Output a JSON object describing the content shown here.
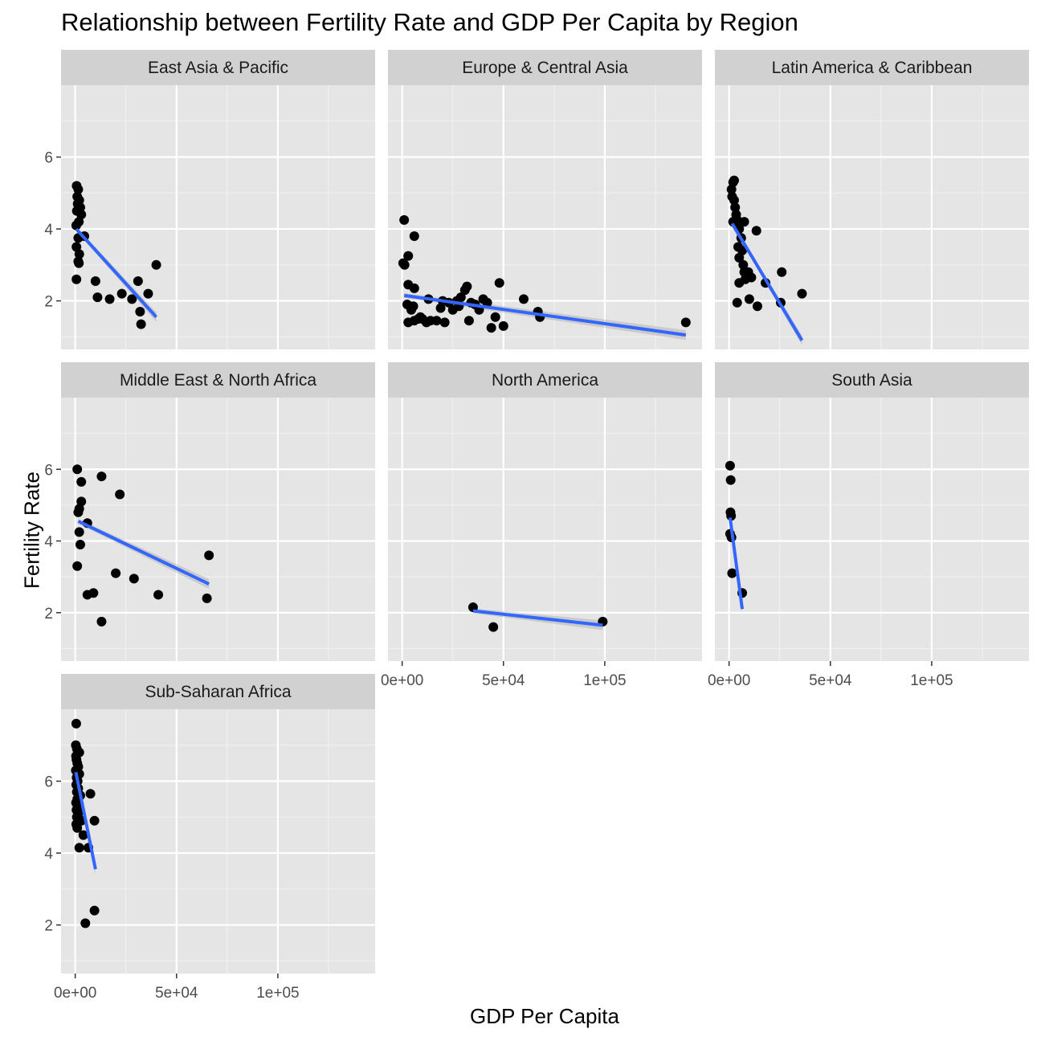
{
  "chart_data": {
    "type": "scatter",
    "title": "Relationship between Fertility Rate and GDP Per Capita by Region",
    "xlabel": "GDP Per Capita",
    "ylabel": "Fertility Rate",
    "xlim": [
      -7000,
      148000
    ],
    "ylim": [
      0.65,
      8.0
    ],
    "x_ticks": [
      0,
      50000,
      100000
    ],
    "x_tick_labels": [
      "0e+00",
      "5e+04",
      "1e+05"
    ],
    "y_ticks": [
      2,
      4,
      6
    ],
    "y_tick_labels": [
      "2",
      "4",
      "6"
    ],
    "trend": "linear fit (lm) with confidence band",
    "point_color": "#000000",
    "line_color": "#3366ff",
    "panel_background": "#e5e5e5",
    "strip_background": "#d1d1d1",
    "panels": [
      {
        "region": "East Asia & Pacific",
        "points": [
          [
            700,
            5.2
          ],
          [
            1500,
            5.1
          ],
          [
            1000,
            4.9
          ],
          [
            2000,
            4.8
          ],
          [
            1200,
            4.7
          ],
          [
            2500,
            4.6
          ],
          [
            800,
            4.5
          ],
          [
            3000,
            4.4
          ],
          [
            1800,
            4.2
          ],
          [
            500,
            4.1
          ],
          [
            4500,
            3.8
          ],
          [
            1500,
            3.75
          ],
          [
            600,
            3.5
          ],
          [
            2000,
            3.3
          ],
          [
            1500,
            3.1
          ],
          [
            1800,
            3.05
          ],
          [
            600,
            2.6
          ],
          [
            10000,
            2.55
          ],
          [
            11000,
            2.1
          ],
          [
            17000,
            2.05
          ],
          [
            23000,
            2.2
          ],
          [
            28000,
            2.05
          ],
          [
            31000,
            2.55
          ],
          [
            36000,
            2.2
          ],
          [
            32000,
            1.7
          ],
          [
            32500,
            1.35
          ],
          [
            40000,
            3.0
          ]
        ],
        "fit": [
          [
            500,
            4.0
          ],
          [
            40000,
            1.55
          ]
        ]
      },
      {
        "region": "Europe & Central Asia",
        "points": [
          [
            1000,
            4.25
          ],
          [
            1200,
            3.0
          ],
          [
            500,
            3.05
          ],
          [
            3000,
            3.25
          ],
          [
            6000,
            3.8
          ],
          [
            3000,
            2.45
          ],
          [
            6000,
            2.35
          ],
          [
            2500,
            1.9
          ],
          [
            4500,
            1.75
          ],
          [
            5500,
            1.85
          ],
          [
            9000,
            1.55
          ],
          [
            8000,
            1.5
          ],
          [
            3000,
            1.4
          ],
          [
            6000,
            1.45
          ],
          [
            10000,
            1.5
          ],
          [
            12000,
            1.4
          ],
          [
            14000,
            1.45
          ],
          [
            13000,
            2.05
          ],
          [
            17000,
            1.45
          ],
          [
            19000,
            1.8
          ],
          [
            21000,
            1.4
          ],
          [
            20000,
            2.0
          ],
          [
            23000,
            1.95
          ],
          [
            25000,
            1.75
          ],
          [
            27000,
            2.0
          ],
          [
            28000,
            1.85
          ],
          [
            29000,
            2.1
          ],
          [
            31000,
            2.3
          ],
          [
            32000,
            2.4
          ],
          [
            33000,
            1.45
          ],
          [
            34000,
            1.95
          ],
          [
            36000,
            1.9
          ],
          [
            38000,
            1.75
          ],
          [
            40000,
            2.05
          ],
          [
            42000,
            1.95
          ],
          [
            44000,
            1.25
          ],
          [
            46000,
            1.55
          ],
          [
            48000,
            2.5
          ],
          [
            50000,
            1.3
          ],
          [
            60000,
            2.05
          ],
          [
            67000,
            1.7
          ],
          [
            68000,
            1.55
          ],
          [
            140000,
            1.4
          ]
        ],
        "fit": [
          [
            1000,
            2.15
          ],
          [
            140000,
            1.05
          ]
        ]
      },
      {
        "region": "Latin America & Caribbean",
        "points": [
          [
            2500,
            5.35
          ],
          [
            2000,
            5.3
          ],
          [
            1200,
            5.1
          ],
          [
            1500,
            4.9
          ],
          [
            2500,
            4.8
          ],
          [
            3000,
            4.6
          ],
          [
            3500,
            4.4
          ],
          [
            4000,
            4.25
          ],
          [
            2000,
            4.2
          ],
          [
            7500,
            4.2
          ],
          [
            5000,
            4.0
          ],
          [
            13500,
            3.95
          ],
          [
            6000,
            3.75
          ],
          [
            4500,
            3.5
          ],
          [
            6500,
            3.4
          ],
          [
            5000,
            3.2
          ],
          [
            7000,
            3.0
          ],
          [
            7500,
            2.8
          ],
          [
            9000,
            2.7
          ],
          [
            9500,
            2.8
          ],
          [
            8000,
            2.6
          ],
          [
            11000,
            2.65
          ],
          [
            5000,
            2.5
          ],
          [
            18000,
            2.5
          ],
          [
            26000,
            2.8
          ],
          [
            10000,
            2.05
          ],
          [
            4000,
            1.95
          ],
          [
            14000,
            1.85
          ],
          [
            25500,
            1.95
          ],
          [
            36000,
            2.2
          ]
        ],
        "fit": [
          [
            1500,
            4.15
          ],
          [
            36000,
            0.9
          ]
        ]
      },
      {
        "region": "Middle East & North Africa",
        "points": [
          [
            1000,
            6.0
          ],
          [
            13000,
            5.8
          ],
          [
            3000,
            5.65
          ],
          [
            22000,
            5.3
          ],
          [
            3000,
            5.1
          ],
          [
            2000,
            4.9
          ],
          [
            1500,
            4.8
          ],
          [
            6000,
            4.5
          ],
          [
            2000,
            4.25
          ],
          [
            2500,
            3.9
          ],
          [
            1000,
            3.3
          ],
          [
            20000,
            3.1
          ],
          [
            29000,
            2.95
          ],
          [
            9000,
            2.55
          ],
          [
            6000,
            2.5
          ],
          [
            41000,
            2.5
          ],
          [
            66000,
            3.6
          ],
          [
            65000,
            2.4
          ],
          [
            13000,
            1.75
          ]
        ],
        "fit": [
          [
            1500,
            4.55
          ],
          [
            66000,
            2.8
          ]
        ]
      },
      {
        "region": "North America",
        "points": [
          [
            35000,
            2.15
          ],
          [
            45000,
            1.6
          ],
          [
            99000,
            1.75
          ]
        ],
        "fit": [
          [
            35000,
            2.05
          ],
          [
            99000,
            1.65
          ]
        ]
      },
      {
        "region": "South Asia",
        "points": [
          [
            500,
            6.1
          ],
          [
            800,
            5.7
          ],
          [
            700,
            4.8
          ],
          [
            1000,
            4.7
          ],
          [
            500,
            4.2
          ],
          [
            1200,
            4.1
          ],
          [
            1500,
            3.1
          ],
          [
            6500,
            2.55
          ]
        ],
        "fit": [
          [
            500,
            4.65
          ],
          [
            6500,
            2.1
          ]
        ]
      },
      {
        "region": "Sub-Saharan Africa",
        "points": [
          [
            500,
            7.6
          ],
          [
            300,
            7.0
          ],
          [
            800,
            6.9
          ],
          [
            2000,
            6.8
          ],
          [
            400,
            6.7
          ],
          [
            600,
            6.6
          ],
          [
            1000,
            6.5
          ],
          [
            1500,
            6.4
          ],
          [
            300,
            6.3
          ],
          [
            2000,
            6.2
          ],
          [
            700,
            6.1
          ],
          [
            1200,
            6.0
          ],
          [
            500,
            5.9
          ],
          [
            1500,
            5.8
          ],
          [
            800,
            5.7
          ],
          [
            2500,
            5.6
          ],
          [
            7500,
            5.65
          ],
          [
            1000,
            5.5
          ],
          [
            400,
            5.4
          ],
          [
            2000,
            5.3
          ],
          [
            600,
            5.2
          ],
          [
            1500,
            5.1
          ],
          [
            800,
            5.0
          ],
          [
            3000,
            4.9
          ],
          [
            9500,
            4.9
          ],
          [
            500,
            4.8
          ],
          [
            1000,
            4.7
          ],
          [
            4000,
            4.5
          ],
          [
            2000,
            4.15
          ],
          [
            6500,
            4.15
          ],
          [
            5000,
            2.05
          ],
          [
            9500,
            2.4
          ]
        ],
        "fit": [
          [
            300,
            6.25
          ],
          [
            10000,
            3.55
          ]
        ]
      }
    ]
  }
}
